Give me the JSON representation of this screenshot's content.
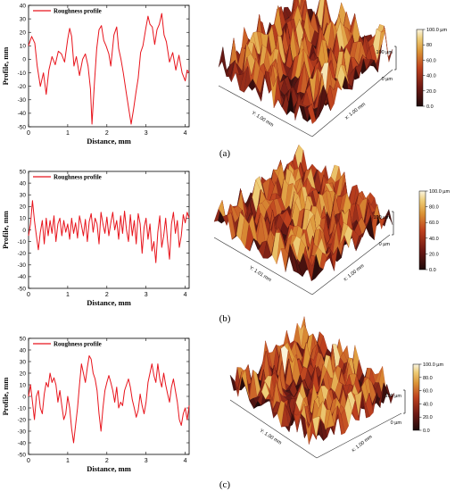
{
  "chart_data": [
    {
      "panel": "(a)",
      "type": "line",
      "legend": [
        "Roughness profile"
      ],
      "xlabel": "Distance, mm",
      "ylabel": "Profile, mm",
      "xlim": [
        0,
        4.1
      ],
      "ylim": [
        -50,
        40
      ],
      "xticks": [
        0,
        1,
        2,
        3,
        4
      ],
      "yticks": [
        -50,
        -40,
        -30,
        -20,
        -10,
        0,
        10,
        20,
        30,
        40
      ],
      "series": [
        {
          "name": "Roughness profile",
          "color": "#e8141c",
          "points": [
            [
              0,
              10
            ],
            [
              0.08,
              17
            ],
            [
              0.16,
              12
            ],
            [
              0.22,
              -5
            ],
            [
              0.3,
              -20
            ],
            [
              0.38,
              -10
            ],
            [
              0.45,
              -26
            ],
            [
              0.52,
              -8
            ],
            [
              0.6,
              2
            ],
            [
              0.68,
              -4
            ],
            [
              0.76,
              6
            ],
            [
              0.84,
              4
            ],
            [
              0.92,
              -2
            ],
            [
              1.0,
              15
            ],
            [
              1.05,
              23
            ],
            [
              1.1,
              17
            ],
            [
              1.16,
              -5
            ],
            [
              1.22,
              2
            ],
            [
              1.3,
              -12
            ],
            [
              1.38,
              0
            ],
            [
              1.45,
              4
            ],
            [
              1.52,
              -5
            ],
            [
              1.58,
              -22
            ],
            [
              1.62,
              -48
            ],
            [
              1.68,
              -18
            ],
            [
              1.74,
              8
            ],
            [
              1.8,
              22
            ],
            [
              1.86,
              25
            ],
            [
              1.92,
              14
            ],
            [
              1.98,
              10
            ],
            [
              2.05,
              4
            ],
            [
              2.1,
              -5
            ],
            [
              2.18,
              18
            ],
            [
              2.25,
              24
            ],
            [
              2.3,
              8
            ],
            [
              2.36,
              0
            ],
            [
              2.42,
              -10
            ],
            [
              2.5,
              -26
            ],
            [
              2.56,
              -37
            ],
            [
              2.62,
              -48
            ],
            [
              2.68,
              -37
            ],
            [
              2.74,
              -25
            ],
            [
              2.8,
              -14
            ],
            [
              2.86,
              5
            ],
            [
              2.92,
              10
            ],
            [
              3.0,
              24
            ],
            [
              3.05,
              32
            ],
            [
              3.1,
              26
            ],
            [
              3.16,
              24
            ],
            [
              3.22,
              11
            ],
            [
              3.28,
              22
            ],
            [
              3.34,
              26
            ],
            [
              3.4,
              34
            ],
            [
              3.46,
              18
            ],
            [
              3.52,
              13
            ],
            [
              3.6,
              -2
            ],
            [
              3.68,
              5
            ],
            [
              3.76,
              -8
            ],
            [
              3.84,
              3
            ],
            [
              3.92,
              -10
            ],
            [
              4.0,
              -16
            ],
            [
              4.05,
              -8
            ],
            [
              4.1,
              -10
            ]
          ]
        }
      ]
    },
    {
      "panel": "(b)",
      "type": "line",
      "legend": [
        "Roughness profile"
      ],
      "xlabel": "Distance, mm",
      "ylabel": "Profile, mm",
      "xlim": [
        0,
        4.1
      ],
      "ylim": [
        -50,
        50
      ],
      "xticks": [
        0,
        1,
        2,
        3,
        4
      ],
      "yticks": [
        -50,
        -40,
        -30,
        -20,
        -10,
        0,
        10,
        20,
        30,
        40,
        50
      ],
      "series": [
        {
          "name": "Roughness profile",
          "color": "#e8141c",
          "points": [
            [
              0,
              -5
            ],
            [
              0.05,
              5
            ],
            [
              0.1,
              25
            ],
            [
              0.15,
              8
            ],
            [
              0.2,
              -5
            ],
            [
              0.25,
              -17
            ],
            [
              0.3,
              -2
            ],
            [
              0.35,
              8
            ],
            [
              0.4,
              -12
            ],
            [
              0.45,
              10
            ],
            [
              0.5,
              -5
            ],
            [
              0.55,
              8
            ],
            [
              0.6,
              -3
            ],
            [
              0.65,
              12
            ],
            [
              0.7,
              -10
            ],
            [
              0.75,
              5
            ],
            [
              0.8,
              10
            ],
            [
              0.85,
              -5
            ],
            [
              0.9,
              8
            ],
            [
              0.95,
              -2
            ],
            [
              1.0,
              5
            ],
            [
              1.05,
              -8
            ],
            [
              1.1,
              10
            ],
            [
              1.15,
              -3
            ],
            [
              1.2,
              6
            ],
            [
              1.25,
              -7
            ],
            [
              1.3,
              12
            ],
            [
              1.35,
              4
            ],
            [
              1.4,
              -5
            ],
            [
              1.45,
              9
            ],
            [
              1.5,
              -10
            ],
            [
              1.55,
              7
            ],
            [
              1.6,
              14
            ],
            [
              1.65,
              -2
            ],
            [
              1.7,
              10
            ],
            [
              1.75,
              5
            ],
            [
              1.8,
              -12
            ],
            [
              1.85,
              15
            ],
            [
              1.9,
              5
            ],
            [
              1.95,
              -3
            ],
            [
              2.0,
              11
            ],
            [
              2.05,
              -5
            ],
            [
              2.1,
              6
            ],
            [
              2.15,
              15
            ],
            [
              2.2,
              0
            ],
            [
              2.25,
              8
            ],
            [
              2.3,
              -8
            ],
            [
              2.35,
              12
            ],
            [
              2.4,
              -3
            ],
            [
              2.45,
              16
            ],
            [
              2.5,
              0
            ],
            [
              2.55,
              -10
            ],
            [
              2.6,
              13
            ],
            [
              2.65,
              -5
            ],
            [
              2.7,
              8
            ],
            [
              2.75,
              -12
            ],
            [
              2.8,
              14
            ],
            [
              2.85,
              5
            ],
            [
              2.9,
              -20
            ],
            [
              2.95,
              2
            ],
            [
              3.0,
              10
            ],
            [
              3.05,
              -8
            ],
            [
              3.1,
              5
            ],
            [
              3.15,
              -18
            ],
            [
              3.2,
              -10
            ],
            [
              3.25,
              -28
            ],
            [
              3.3,
              -2
            ],
            [
              3.35,
              12
            ],
            [
              3.4,
              -15
            ],
            [
              3.45,
              -5
            ],
            [
              3.5,
              10
            ],
            [
              3.55,
              -10
            ],
            [
              3.6,
              -25
            ],
            [
              3.65,
              5
            ],
            [
              3.7,
              15
            ],
            [
              3.75,
              -3
            ],
            [
              3.8,
              8
            ],
            [
              3.85,
              -15
            ],
            [
              3.9,
              -5
            ],
            [
              3.95,
              13
            ],
            [
              4.0,
              6
            ],
            [
              4.05,
              15
            ],
            [
              4.1,
              10
            ]
          ]
        }
      ]
    },
    {
      "panel": "(c)",
      "type": "line",
      "legend": [
        "Roughness profile"
      ],
      "xlabel": "Distance, mm",
      "ylabel": "Profile, mm",
      "xlim": [
        0,
        4.1
      ],
      "ylim": [
        -50,
        50
      ],
      "xticks": [
        0,
        1,
        2,
        3,
        4
      ],
      "yticks": [
        -50,
        -40,
        -30,
        -20,
        -10,
        0,
        10,
        20,
        30,
        40,
        50
      ],
      "series": [
        {
          "name": "Roughness profile",
          "color": "#e8141c",
          "points": [
            [
              0,
              0
            ],
            [
              0.05,
              10
            ],
            [
              0.1,
              -5
            ],
            [
              0.15,
              -20
            ],
            [
              0.2,
              0
            ],
            [
              0.25,
              5
            ],
            [
              0.3,
              -10
            ],
            [
              0.35,
              -15
            ],
            [
              0.4,
              2
            ],
            [
              0.45,
              12
            ],
            [
              0.5,
              8
            ],
            [
              0.55,
              20
            ],
            [
              0.6,
              12
            ],
            [
              0.65,
              16
            ],
            [
              0.7,
              10
            ],
            [
              0.75,
              -5
            ],
            [
              0.8,
              5
            ],
            [
              0.85,
              -8
            ],
            [
              0.9,
              -20
            ],
            [
              0.95,
              -15
            ],
            [
              1.0,
              0
            ],
            [
              1.05,
              -10
            ],
            [
              1.1,
              -28
            ],
            [
              1.15,
              -40
            ],
            [
              1.2,
              -25
            ],
            [
              1.25,
              -10
            ],
            [
              1.3,
              10
            ],
            [
              1.35,
              28
            ],
            [
              1.4,
              20
            ],
            [
              1.45,
              12
            ],
            [
              1.5,
              25
            ],
            [
              1.55,
              35
            ],
            [
              1.6,
              32
            ],
            [
              1.65,
              20
            ],
            [
              1.7,
              15
            ],
            [
              1.75,
              5
            ],
            [
              1.8,
              -15
            ],
            [
              1.85,
              -30
            ],
            [
              1.9,
              -10
            ],
            [
              1.95,
              5
            ],
            [
              2.0,
              12
            ],
            [
              2.05,
              18
            ],
            [
              2.1,
              12
            ],
            [
              2.15,
              5
            ],
            [
              2.2,
              -5
            ],
            [
              2.25,
              8
            ],
            [
              2.3,
              -10
            ],
            [
              2.35,
              -5
            ],
            [
              2.4,
              -8
            ],
            [
              2.45,
              5
            ],
            [
              2.5,
              10
            ],
            [
              2.55,
              15
            ],
            [
              2.6,
              8
            ],
            [
              2.65,
              -3
            ],
            [
              2.7,
              -10
            ],
            [
              2.75,
              -18
            ],
            [
              2.8,
              -12
            ],
            [
              2.85,
              2
            ],
            [
              2.9,
              -8
            ],
            [
              2.95,
              -15
            ],
            [
              3.0,
              -5
            ],
            [
              3.05,
              12
            ],
            [
              3.1,
              20
            ],
            [
              3.15,
              28
            ],
            [
              3.2,
              18
            ],
            [
              3.25,
              12
            ],
            [
              3.3,
              28
            ],
            [
              3.35,
              15
            ],
            [
              3.4,
              8
            ],
            [
              3.45,
              20
            ],
            [
              3.5,
              10
            ],
            [
              3.55,
              2
            ],
            [
              3.6,
              -5
            ],
            [
              3.65,
              8
            ],
            [
              3.7,
              15
            ],
            [
              3.75,
              5
            ],
            [
              3.8,
              -5
            ],
            [
              3.85,
              -20
            ],
            [
              3.9,
              -25
            ],
            [
              3.95,
              -15
            ],
            [
              4.0,
              -10
            ],
            [
              4.05,
              -20
            ],
            [
              4.1,
              -8
            ]
          ]
        }
      ]
    }
  ],
  "surfaces": [
    {
      "panel": "(a)",
      "y_axis_label": "Y: 1.00 mm",
      "x_axis_label": "x: 1.00 mm",
      "height_scale_top": "100 µm",
      "height_scale_bottom": "0 µm",
      "colorbar_ticks": [
        "100.0 µm",
        "80",
        "60.0",
        "40.0",
        "20.0",
        "0.0"
      ]
    },
    {
      "panel": "(b)",
      "y_axis_label": "Y: 1.01 mm",
      "x_axis_label": "x: 1.00 mm",
      "height_scale_top": "100 µm",
      "height_scale_bottom": "0 µm",
      "colorbar_ticks": [
        "100.0 µm",
        "80.0",
        "60.0",
        "40.0",
        "20.0",
        "0.0"
      ]
    },
    {
      "panel": "(c)",
      "y_axis_label": "Y: 1.00 mm",
      "x_axis_label": "x: 1.00 mm",
      "height_scale_top": "100 µm",
      "height_scale_bottom": "0 µm",
      "colorbar_ticks": [
        "100.0 µm",
        "80.0",
        "60.0",
        "40.0",
        "20.0",
        "0.0"
      ]
    }
  ],
  "panel_labels": [
    "(a)",
    "(b)",
    "(c)"
  ],
  "colors": {
    "line": "#e8141c",
    "surface_dark": "#3a0c0c",
    "surface_mid": "#b03a1c",
    "surface_light": "#e8b850",
    "surface_highlight": "#f6ecc8"
  }
}
